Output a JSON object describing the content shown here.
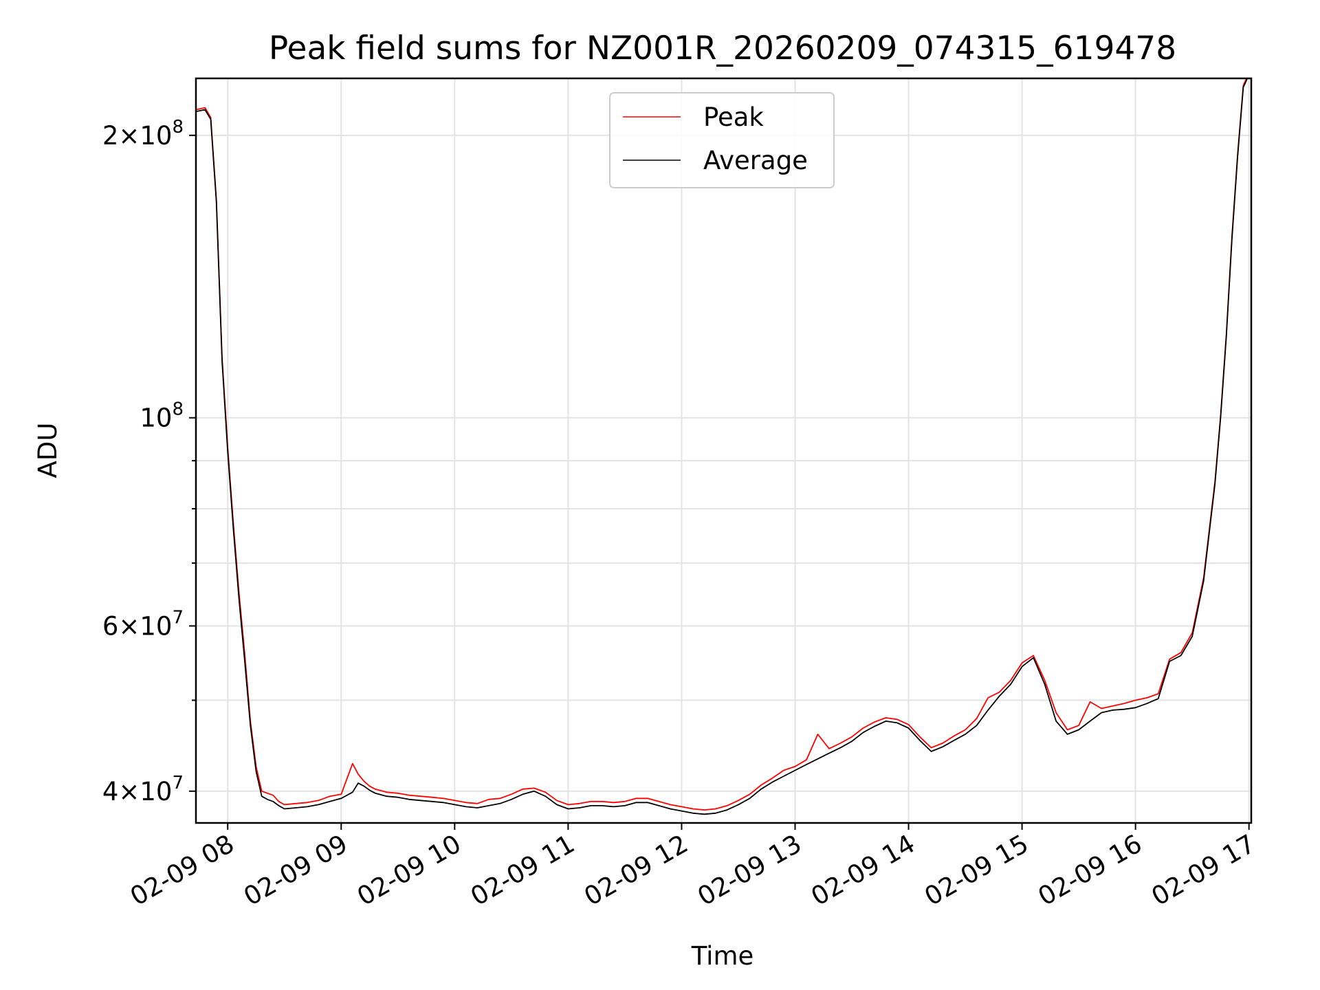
{
  "chart_data": {
    "type": "line",
    "title": "Peak field sums for NZ001R_20260209_074315_619478",
    "xlabel": "Time",
    "ylabel": "ADU",
    "yscale": "log",
    "grid": true,
    "xlim_hours": [
      7.72,
      17.02
    ],
    "ylim": [
      37000000,
      230000000
    ],
    "x_ticks": [
      {
        "hour": 8,
        "label": "02-09 08"
      },
      {
        "hour": 9,
        "label": "02-09 09"
      },
      {
        "hour": 10,
        "label": "02-09 10"
      },
      {
        "hour": 11,
        "label": "02-09 11"
      },
      {
        "hour": 12,
        "label": "02-09 12"
      },
      {
        "hour": 13,
        "label": "02-09 13"
      },
      {
        "hour": 14,
        "label": "02-09 14"
      },
      {
        "hour": 15,
        "label": "02-09 15"
      },
      {
        "hour": 16,
        "label": "02-09 16"
      },
      {
        "hour": 17,
        "label": "02-09 17"
      }
    ],
    "y_major_ticks": [
      {
        "value": 40000000,
        "mantissa": "4",
        "exponent": "7"
      },
      {
        "value": 60000000,
        "mantissa": "6",
        "exponent": "7"
      },
      {
        "value": 100000000,
        "mantissa": "",
        "exponent": "8"
      },
      {
        "value": 200000000,
        "mantissa": "2",
        "exponent": "8"
      }
    ],
    "y_minor_ticks": [
      50000000,
      70000000,
      80000000,
      90000000
    ],
    "legend": {
      "position": "upper center",
      "entries": [
        {
          "name": "Peak",
          "color": "#ff0000"
        },
        {
          "name": "Average",
          "color": "#000000"
        }
      ]
    },
    "series": [
      {
        "name": "Average",
        "color": "#000000",
        "x_hours": [
          7.72,
          7.8,
          7.85,
          7.9,
          7.95,
          8.0,
          8.05,
          8.1,
          8.15,
          8.2,
          8.25,
          8.3,
          8.35,
          8.4,
          8.45,
          8.5,
          8.6,
          8.7,
          8.8,
          8.9,
          9.0,
          9.1,
          9.15,
          9.2,
          9.25,
          9.3,
          9.4,
          9.5,
          9.6,
          9.7,
          9.8,
          9.9,
          10.0,
          10.1,
          10.2,
          10.3,
          10.4,
          10.5,
          10.6,
          10.7,
          10.8,
          10.9,
          11.0,
          11.1,
          11.2,
          11.3,
          11.4,
          11.5,
          11.6,
          11.7,
          11.8,
          11.9,
          12.0,
          12.1,
          12.2,
          12.3,
          12.4,
          12.5,
          12.6,
          12.7,
          12.8,
          12.9,
          13.0,
          13.1,
          13.2,
          13.3,
          13.4,
          13.5,
          13.6,
          13.7,
          13.8,
          13.9,
          14.0,
          14.1,
          14.2,
          14.3,
          14.4,
          14.5,
          14.6,
          14.7,
          14.8,
          14.9,
          15.0,
          15.1,
          15.2,
          15.3,
          15.4,
          15.5,
          15.6,
          15.7,
          15.8,
          15.9,
          16.0,
          16.1,
          16.2,
          16.3,
          16.4,
          16.5,
          16.6,
          16.7,
          16.75,
          16.8,
          16.85,
          16.9,
          16.95,
          17.0
        ],
        "values": [
          212000000,
          213000000,
          208000000,
          170000000,
          115000000,
          92000000,
          76000000,
          64000000,
          55000000,
          47000000,
          42000000,
          39500000,
          39200000,
          39000000,
          38600000,
          38300000,
          38400000,
          38500000,
          38700000,
          39000000,
          39300000,
          39900000,
          40800000,
          40500000,
          40100000,
          39800000,
          39500000,
          39400000,
          39200000,
          39100000,
          39000000,
          38900000,
          38700000,
          38500000,
          38400000,
          38600000,
          38800000,
          39200000,
          39700000,
          40000000,
          39500000,
          38700000,
          38300000,
          38400000,
          38600000,
          38600000,
          38500000,
          38600000,
          38900000,
          38900000,
          38600000,
          38300000,
          38100000,
          37900000,
          37800000,
          37900000,
          38200000,
          38700000,
          39300000,
          40200000,
          40900000,
          41500000,
          42100000,
          42700000,
          43300000,
          43900000,
          44500000,
          45200000,
          46200000,
          46900000,
          47500000,
          47300000,
          46700000,
          45300000,
          44100000,
          44600000,
          45300000,
          46000000,
          47000000,
          48800000,
          50500000,
          52000000,
          54300000,
          55500000,
          52000000,
          47500000,
          46000000,
          46500000,
          47500000,
          48500000,
          48800000,
          48900000,
          49100000,
          49600000,
          50200000,
          55000000,
          55800000,
          58500000,
          67000000,
          85000000,
          100000000,
          122000000,
          155000000,
          190000000,
          225000000,
          232000000
        ]
      },
      {
        "name": "Peak",
        "color": "#ff0000",
        "x_hours": [
          7.72,
          7.8,
          7.85,
          7.9,
          7.95,
          8.0,
          8.05,
          8.1,
          8.15,
          8.2,
          8.25,
          8.3,
          8.35,
          8.4,
          8.45,
          8.5,
          8.6,
          8.7,
          8.8,
          8.9,
          9.0,
          9.1,
          9.15,
          9.2,
          9.25,
          9.3,
          9.4,
          9.5,
          9.6,
          9.7,
          9.8,
          9.9,
          10.0,
          10.1,
          10.2,
          10.3,
          10.4,
          10.5,
          10.6,
          10.7,
          10.8,
          10.9,
          11.0,
          11.1,
          11.2,
          11.3,
          11.4,
          11.5,
          11.6,
          11.7,
          11.8,
          11.9,
          12.0,
          12.1,
          12.2,
          12.3,
          12.4,
          12.5,
          12.6,
          12.7,
          12.8,
          12.9,
          13.0,
          13.1,
          13.2,
          13.3,
          13.4,
          13.5,
          13.6,
          13.7,
          13.8,
          13.9,
          14.0,
          14.1,
          14.2,
          14.3,
          14.4,
          14.5,
          14.6,
          14.7,
          14.8,
          14.9,
          15.0,
          15.1,
          15.2,
          15.3,
          15.4,
          15.5,
          15.6,
          15.7,
          15.8,
          15.9,
          16.0,
          16.1,
          16.2,
          16.3,
          16.4,
          16.5,
          16.6,
          16.7,
          16.75,
          16.8,
          16.85,
          16.9,
          16.95,
          17.0
        ],
        "values": [
          213000000,
          214000000,
          209000000,
          171000000,
          116000000,
          93000000,
          77000000,
          65000000,
          56000000,
          47500000,
          42500000,
          40000000,
          39800000,
          39600000,
          39000000,
          38700000,
          38800000,
          38900000,
          39100000,
          39500000,
          39700000,
          42800000,
          41700000,
          41000000,
          40500000,
          40200000,
          39900000,
          39800000,
          39600000,
          39500000,
          39400000,
          39300000,
          39100000,
          38900000,
          38800000,
          39200000,
          39300000,
          39700000,
          40200000,
          40300000,
          39900000,
          39100000,
          38700000,
          38800000,
          39000000,
          39000000,
          38900000,
          39000000,
          39300000,
          39300000,
          39000000,
          38700000,
          38500000,
          38300000,
          38200000,
          38300000,
          38600000,
          39100000,
          39700000,
          40600000,
          41300000,
          42100000,
          42500000,
          43200000,
          46000000,
          44400000,
          45000000,
          45700000,
          46700000,
          47400000,
          47900000,
          47700000,
          47100000,
          45700000,
          44500000,
          45000000,
          45800000,
          46500000,
          47800000,
          50300000,
          51000000,
          52500000,
          54800000,
          55800000,
          52500000,
          48500000,
          46500000,
          47000000,
          49800000,
          49000000,
          49300000,
          49600000,
          50000000,
          50300000,
          50800000,
          55300000,
          56200000,
          59000000,
          67500000,
          85500000,
          100500000,
          122500000,
          156000000,
          191000000,
          226000000,
          233000000
        ]
      }
    ]
  }
}
